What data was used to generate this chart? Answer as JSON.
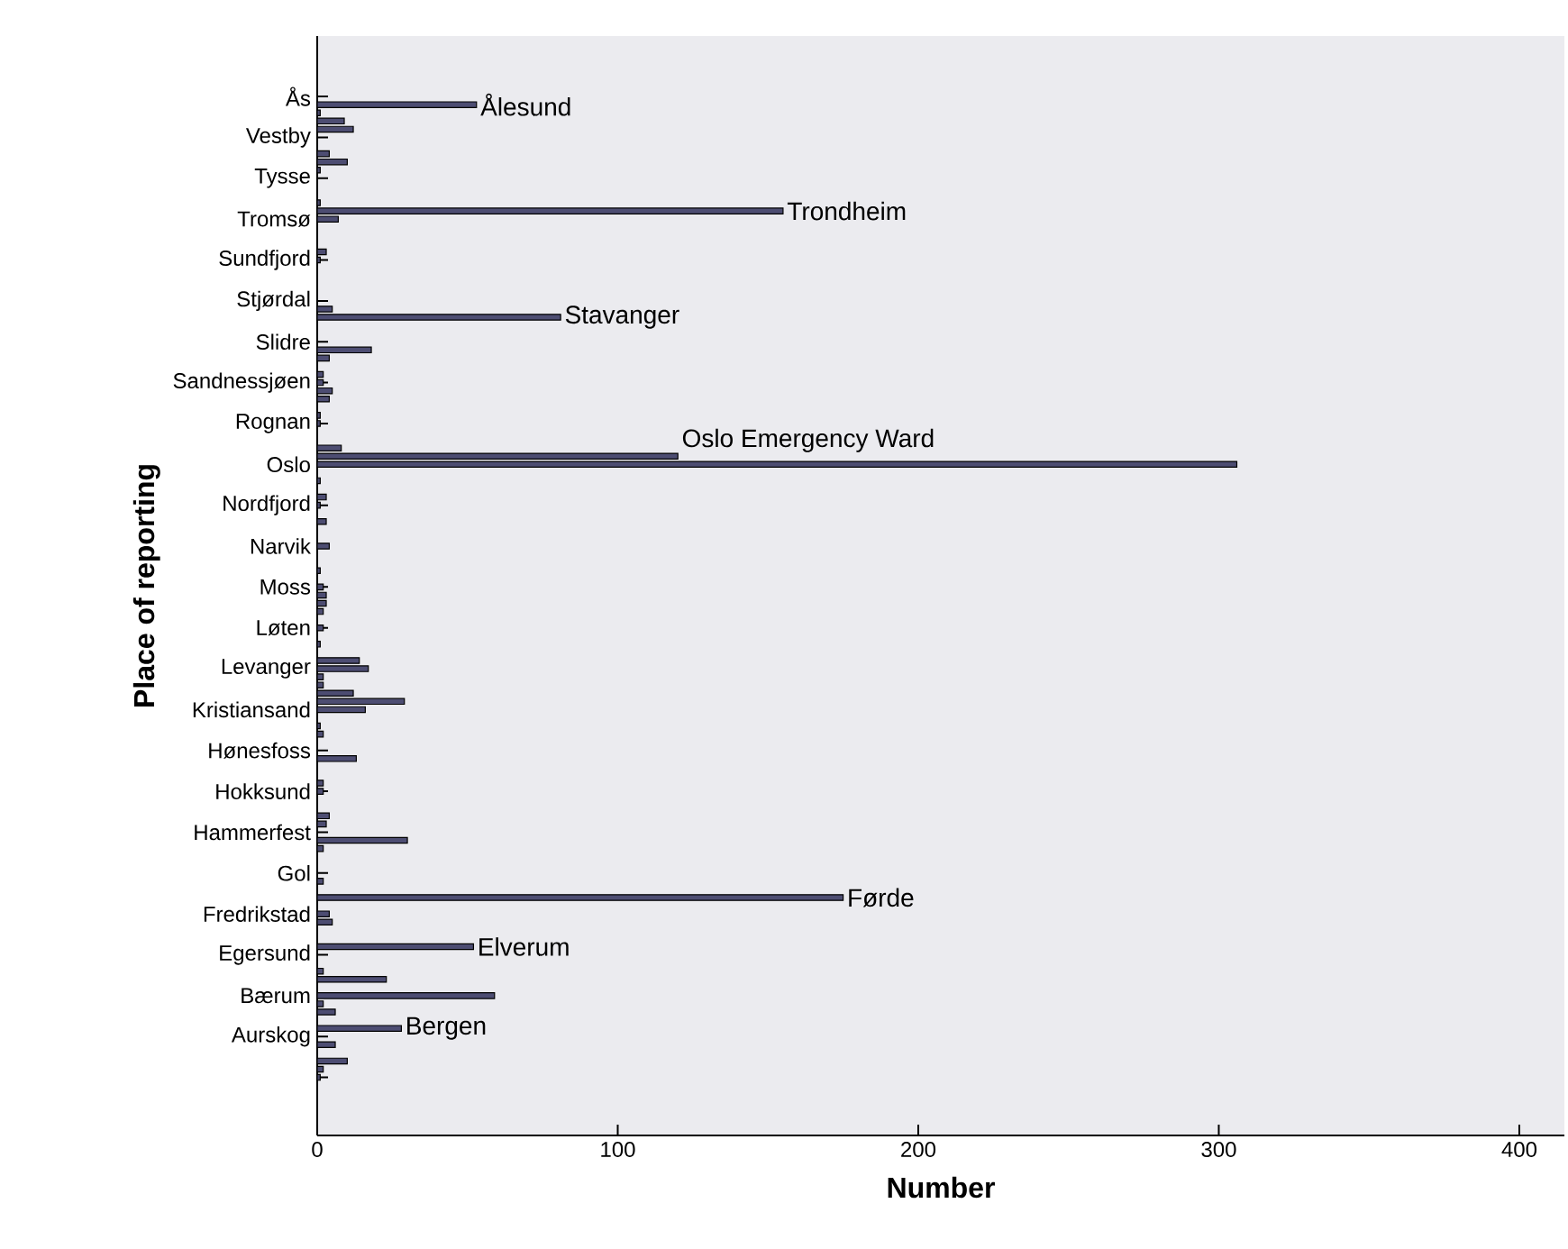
{
  "chart_data": {
    "type": "bar",
    "orientation": "horizontal",
    "xlabel": "Number",
    "ylabel": "Place of reporting",
    "categories": [
      "Ås",
      null,
      null,
      null,
      null,
      "Vestby",
      null,
      null,
      null,
      null,
      "Tysse",
      null,
      null,
      null,
      null,
      "Tromsø",
      null,
      null,
      null,
      null,
      "Sundfjord",
      null,
      null,
      null,
      null,
      "Stjørdal",
      null,
      null,
      null,
      null,
      "Slidre",
      null,
      null,
      null,
      null,
      "Sandnessjøen",
      null,
      null,
      null,
      null,
      "Rognan",
      null,
      null,
      null,
      null,
      "Oslo",
      null,
      null,
      null,
      null,
      "Nordfjord",
      null,
      null,
      null,
      null,
      "Narvik",
      null,
      null,
      null,
      null,
      "Moss",
      null,
      null,
      null,
      null,
      "Løten",
      null,
      null,
      null,
      null,
      "Levanger",
      null,
      null,
      null,
      null,
      "Kristiansand",
      null,
      null,
      null,
      null,
      "Hønesfoss",
      null,
      null,
      null,
      null,
      "Hokksund",
      null,
      null,
      null,
      null,
      "Hammerfest",
      null,
      null,
      null,
      null,
      "Gol",
      null,
      null,
      null,
      null,
      "Fredrikstad",
      null,
      null,
      null,
      null,
      "Egersund",
      null,
      null,
      null,
      null,
      "Bærum",
      null,
      null,
      null,
      null,
      "Aurskog",
      null,
      null,
      null,
      null,
      null
    ],
    "values": [
      null,
      53,
      1,
      9,
      12,
      null,
      null,
      4,
      10,
      1,
      null,
      null,
      null,
      1,
      155,
      7,
      null,
      null,
      null,
      3,
      1,
      null,
      null,
      null,
      null,
      null,
      5,
      81,
      null,
      null,
      null,
      18,
      4,
      null,
      2,
      2,
      5,
      4,
      null,
      1,
      1,
      null,
      null,
      8,
      120,
      306,
      null,
      1,
      null,
      3,
      1,
      null,
      3,
      null,
      null,
      4,
      null,
      null,
      1,
      null,
      2,
      3,
      3,
      2,
      null,
      2,
      null,
      1,
      null,
      14,
      17,
      2,
      2,
      12,
      29,
      16,
      null,
      1,
      2,
      null,
      null,
      13,
      null,
      null,
      2,
      2,
      null,
      null,
      4,
      3,
      null,
      30,
      2,
      null,
      null,
      null,
      2,
      null,
      175,
      null,
      4,
      5,
      null,
      null,
      52,
      null,
      null,
      2,
      23,
      null,
      59,
      2,
      6,
      null,
      28,
      null,
      6,
      null,
      10,
      2,
      1
    ],
    "value_labels": [
      null,
      "Ålesund",
      null,
      null,
      null,
      null,
      null,
      null,
      null,
      null,
      null,
      null,
      null,
      null,
      "Trondheim",
      null,
      null,
      null,
      null,
      null,
      null,
      null,
      null,
      null,
      null,
      null,
      null,
      "Stavanger",
      null,
      null,
      null,
      null,
      null,
      null,
      null,
      null,
      null,
      null,
      null,
      null,
      null,
      null,
      null,
      null,
      "Oslo Emergency Ward",
      null,
      null,
      null,
      null,
      null,
      null,
      null,
      null,
      null,
      null,
      null,
      null,
      null,
      null,
      null,
      null,
      null,
      null,
      null,
      null,
      null,
      null,
      null,
      null,
      null,
      null,
      null,
      null,
      null,
      null,
      null,
      null,
      null,
      null,
      null,
      null,
      null,
      null,
      null,
      null,
      null,
      null,
      null,
      null,
      null,
      null,
      null,
      null,
      null,
      null,
      null,
      null,
      null,
      "Førde",
      null,
      null,
      null,
      null,
      null,
      "Elverum",
      null,
      null,
      null,
      null,
      null,
      null,
      null,
      null,
      null,
      "Bergen",
      null,
      null,
      null,
      null,
      null,
      null
    ],
    "color": "#4d4d72",
    "xlim": [
      0,
      415
    ],
    "xticks": [
      0,
      100,
      200,
      300,
      400
    ]
  }
}
